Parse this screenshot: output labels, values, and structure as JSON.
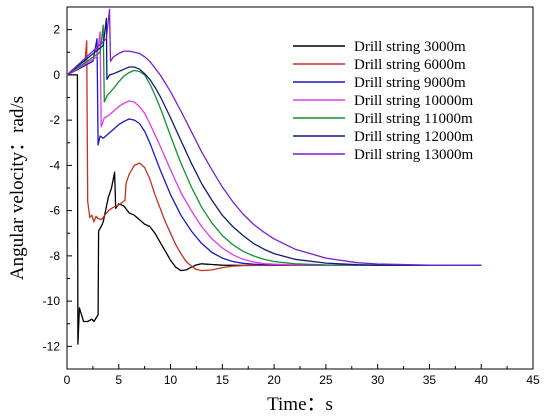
{
  "chart_data": {
    "type": "line",
    "xlabel": "Time：s",
    "ylabel": "Angular velocity：rad/s",
    "xlim": [
      0,
      45
    ],
    "ylim": [
      -13,
      3
    ],
    "xticks": [
      "0",
      "5",
      "10",
      "15",
      "20",
      "25",
      "30",
      "35",
      "40",
      "45"
    ],
    "yticks": [
      "-12",
      "-10",
      "-8",
      "-6",
      "-4",
      "-2",
      "0",
      "2"
    ],
    "grid": false,
    "legend_position": "top-right",
    "series": [
      {
        "name": "Drill string 3000m",
        "color": "#000000",
        "points": [
          [
            0,
            0
          ],
          [
            1.0,
            0
          ],
          [
            1.05,
            -11.9
          ],
          [
            1.2,
            -10.3
          ],
          [
            1.4,
            -10.6
          ],
          [
            1.6,
            -10.9
          ],
          [
            2.0,
            -10.9
          ],
          [
            2.4,
            -10.8
          ],
          [
            2.6,
            -10.9
          ],
          [
            2.8,
            -10.75
          ],
          [
            3.0,
            -10.6
          ],
          [
            3.05,
            -6.9
          ],
          [
            3.3,
            -6.7
          ],
          [
            3.5,
            -6.5
          ],
          [
            4.0,
            -5.4
          ],
          [
            4.3,
            -5.0
          ],
          [
            4.6,
            -4.3
          ],
          [
            4.7,
            -5.9
          ],
          [
            5.0,
            -5.7
          ],
          [
            5.5,
            -5.8
          ],
          [
            6.0,
            -6.1
          ],
          [
            6.5,
            -6.2
          ],
          [
            7.0,
            -6.4
          ],
          [
            7.5,
            -6.6
          ],
          [
            8.0,
            -6.7
          ],
          [
            8.5,
            -7.0
          ],
          [
            9.0,
            -7.4
          ],
          [
            9.5,
            -7.8
          ],
          [
            10.0,
            -8.2
          ],
          [
            10.5,
            -8.5
          ],
          [
            11.0,
            -8.65
          ],
          [
            11.5,
            -8.62
          ],
          [
            12.0,
            -8.5
          ],
          [
            12.5,
            -8.4
          ],
          [
            13.0,
            -8.35
          ],
          [
            14.0,
            -8.38
          ],
          [
            15.0,
            -8.41
          ],
          [
            17.0,
            -8.42
          ],
          [
            20,
            -8.42
          ],
          [
            30,
            -8.42
          ],
          [
            40,
            -8.42
          ]
        ]
      },
      {
        "name": "Drill string 6000m",
        "color": "#c8301e",
        "points": [
          [
            0,
            0
          ],
          [
            1.7,
            0.4
          ],
          [
            1.9,
            1.5
          ],
          [
            2.0,
            -5.6
          ],
          [
            2.2,
            -6.3
          ],
          [
            2.4,
            -6.2
          ],
          [
            2.6,
            -6.5
          ],
          [
            2.8,
            -6.25
          ],
          [
            3.0,
            -6.35
          ],
          [
            3.3,
            -6.4
          ],
          [
            3.5,
            -6.3
          ],
          [
            4.0,
            -6.0
          ],
          [
            4.5,
            -5.85
          ],
          [
            5.0,
            -5.75
          ],
          [
            5.6,
            -5.55
          ],
          [
            5.7,
            -4.8
          ],
          [
            6.0,
            -4.4
          ],
          [
            6.5,
            -4.0
          ],
          [
            7.0,
            -3.9
          ],
          [
            7.5,
            -4.1
          ],
          [
            8.0,
            -4.6
          ],
          [
            8.5,
            -5.3
          ],
          [
            9.0,
            -5.9
          ],
          [
            9.5,
            -6.5
          ],
          [
            10.0,
            -7.0
          ],
          [
            10.5,
            -7.5
          ],
          [
            11.0,
            -7.9
          ],
          [
            11.5,
            -8.25
          ],
          [
            12.0,
            -8.45
          ],
          [
            12.5,
            -8.6
          ],
          [
            13.0,
            -8.65
          ],
          [
            14.0,
            -8.62
          ],
          [
            15.0,
            -8.52
          ],
          [
            16.0,
            -8.45
          ],
          [
            17.0,
            -8.43
          ],
          [
            20,
            -8.42
          ],
          [
            30,
            -8.42
          ],
          [
            40,
            -8.42
          ]
        ]
      },
      {
        "name": "Drill string 9000m",
        "color": "#1818c8",
        "points": [
          [
            0,
            0
          ],
          [
            2.5,
            0.6
          ],
          [
            2.9,
            1.6
          ],
          [
            3.0,
            -3.1
          ],
          [
            3.2,
            -2.7
          ],
          [
            3.5,
            -2.8
          ],
          [
            4.0,
            -2.6
          ],
          [
            4.5,
            -2.4
          ],
          [
            5.0,
            -2.2
          ],
          [
            5.5,
            -2.05
          ],
          [
            6.0,
            -1.95
          ],
          [
            6.5,
            -2.0
          ],
          [
            7.0,
            -2.15
          ],
          [
            7.5,
            -2.5
          ],
          [
            8.0,
            -3.0
          ],
          [
            8.5,
            -3.6
          ],
          [
            9.0,
            -4.2
          ],
          [
            10.0,
            -5.3
          ],
          [
            11.0,
            -6.2
          ],
          [
            12.0,
            -6.9
          ],
          [
            13.0,
            -7.45
          ],
          [
            14.0,
            -7.85
          ],
          [
            15.0,
            -8.1
          ],
          [
            16.0,
            -8.25
          ],
          [
            17.0,
            -8.33
          ],
          [
            18.0,
            -8.37
          ],
          [
            20,
            -8.4
          ],
          [
            25,
            -8.42
          ],
          [
            30,
            -8.42
          ],
          [
            40,
            -8.42
          ]
        ]
      },
      {
        "name": "Drill string 10000m",
        "color": "#e03ae8",
        "points": [
          [
            0,
            0
          ],
          [
            2.9,
            0.8
          ],
          [
            3.2,
            1.9
          ],
          [
            3.3,
            -2.3
          ],
          [
            3.6,
            -1.9
          ],
          [
            4.0,
            -1.8
          ],
          [
            4.5,
            -1.6
          ],
          [
            5.0,
            -1.4
          ],
          [
            5.5,
            -1.25
          ],
          [
            6.0,
            -1.15
          ],
          [
            6.5,
            -1.2
          ],
          [
            7.0,
            -1.4
          ],
          [
            7.5,
            -1.7
          ],
          [
            8.0,
            -2.15
          ],
          [
            8.5,
            -2.65
          ],
          [
            9.0,
            -3.15
          ],
          [
            10.0,
            -4.2
          ],
          [
            11.0,
            -5.2
          ],
          [
            12.0,
            -6.0
          ],
          [
            13.0,
            -6.7
          ],
          [
            14.0,
            -7.25
          ],
          [
            15.0,
            -7.65
          ],
          [
            16.0,
            -7.95
          ],
          [
            17.0,
            -8.15
          ],
          [
            18.0,
            -8.27
          ],
          [
            19.0,
            -8.34
          ],
          [
            20,
            -8.37
          ],
          [
            22,
            -8.4
          ],
          [
            25,
            -8.41
          ],
          [
            30,
            -8.42
          ],
          [
            40,
            -8.42
          ]
        ]
      },
      {
        "name": "Drill string 11000m",
        "color": "#12912e",
        "points": [
          [
            0,
            0
          ],
          [
            3.2,
            1.0
          ],
          [
            3.5,
            2.2
          ],
          [
            3.6,
            -1.2
          ],
          [
            3.9,
            -0.9
          ],
          [
            4.5,
            -0.6
          ],
          [
            5.0,
            -0.3
          ],
          [
            5.5,
            -0.05
          ],
          [
            6.0,
            0.1
          ],
          [
            6.5,
            0.2
          ],
          [
            7.0,
            0.15
          ],
          [
            7.5,
            0.0
          ],
          [
            8.0,
            -0.4
          ],
          [
            8.5,
            -0.9
          ],
          [
            9.0,
            -1.45
          ],
          [
            10.0,
            -2.7
          ],
          [
            11.0,
            -3.9
          ],
          [
            12.0,
            -4.95
          ],
          [
            13.0,
            -5.85
          ],
          [
            14.0,
            -6.55
          ],
          [
            15.0,
            -7.1
          ],
          [
            16.0,
            -7.5
          ],
          [
            17.0,
            -7.8
          ],
          [
            18.0,
            -8.0
          ],
          [
            19.0,
            -8.15
          ],
          [
            20,
            -8.25
          ],
          [
            22,
            -8.35
          ],
          [
            25,
            -8.4
          ],
          [
            30,
            -8.42
          ],
          [
            40,
            -8.42
          ]
        ]
      },
      {
        "name": "Drill string 12000m",
        "color": "#101c78",
        "points": [
          [
            0,
            0
          ],
          [
            3.5,
            1.3
          ],
          [
            3.8,
            2.5
          ],
          [
            3.85,
            -0.2
          ],
          [
            4.1,
            0.0
          ],
          [
            4.5,
            0.05
          ],
          [
            5.0,
            0.15
          ],
          [
            5.5,
            0.25
          ],
          [
            6.0,
            0.35
          ],
          [
            6.5,
            0.35
          ],
          [
            7.0,
            0.25
          ],
          [
            7.5,
            0.05
          ],
          [
            8.0,
            -0.2
          ],
          [
            8.5,
            -0.55
          ],
          [
            9.0,
            -0.95
          ],
          [
            10.0,
            -1.9
          ],
          [
            11.0,
            -2.9
          ],
          [
            12.0,
            -3.9
          ],
          [
            13.0,
            -4.8
          ],
          [
            14.0,
            -5.55
          ],
          [
            15.0,
            -6.2
          ],
          [
            16.0,
            -6.7
          ],
          [
            17.0,
            -7.1
          ],
          [
            18.0,
            -7.45
          ],
          [
            19.0,
            -7.7
          ],
          [
            20,
            -7.9
          ],
          [
            22,
            -8.15
          ],
          [
            25,
            -8.32
          ],
          [
            28,
            -8.39
          ],
          [
            30,
            -8.41
          ],
          [
            40,
            -8.42
          ]
        ]
      },
      {
        "name": "Drill string 13000m",
        "color": "#7a1fd0",
        "points": [
          [
            0,
            0
          ],
          [
            3.8,
            1.6
          ],
          [
            4.1,
            2.9
          ],
          [
            4.2,
            0.6
          ],
          [
            4.5,
            0.8
          ],
          [
            5.0,
            0.95
          ],
          [
            5.5,
            1.05
          ],
          [
            6.0,
            1.05
          ],
          [
            6.5,
            1.0
          ],
          [
            7.0,
            0.95
          ],
          [
            7.5,
            0.8
          ],
          [
            8.0,
            0.6
          ],
          [
            8.5,
            0.3
          ],
          [
            9.0,
            0.0
          ],
          [
            10.0,
            -0.75
          ],
          [
            11.0,
            -1.6
          ],
          [
            12.0,
            -2.5
          ],
          [
            13.0,
            -3.4
          ],
          [
            14.0,
            -4.2
          ],
          [
            15.0,
            -4.95
          ],
          [
            16.0,
            -5.6
          ],
          [
            17.0,
            -6.15
          ],
          [
            18.0,
            -6.6
          ],
          [
            19.0,
            -6.95
          ],
          [
            20,
            -7.25
          ],
          [
            22,
            -7.7
          ],
          [
            25,
            -8.1
          ],
          [
            28,
            -8.3
          ],
          [
            30,
            -8.36
          ],
          [
            35,
            -8.41
          ],
          [
            40,
            -8.42
          ]
        ]
      }
    ]
  }
}
